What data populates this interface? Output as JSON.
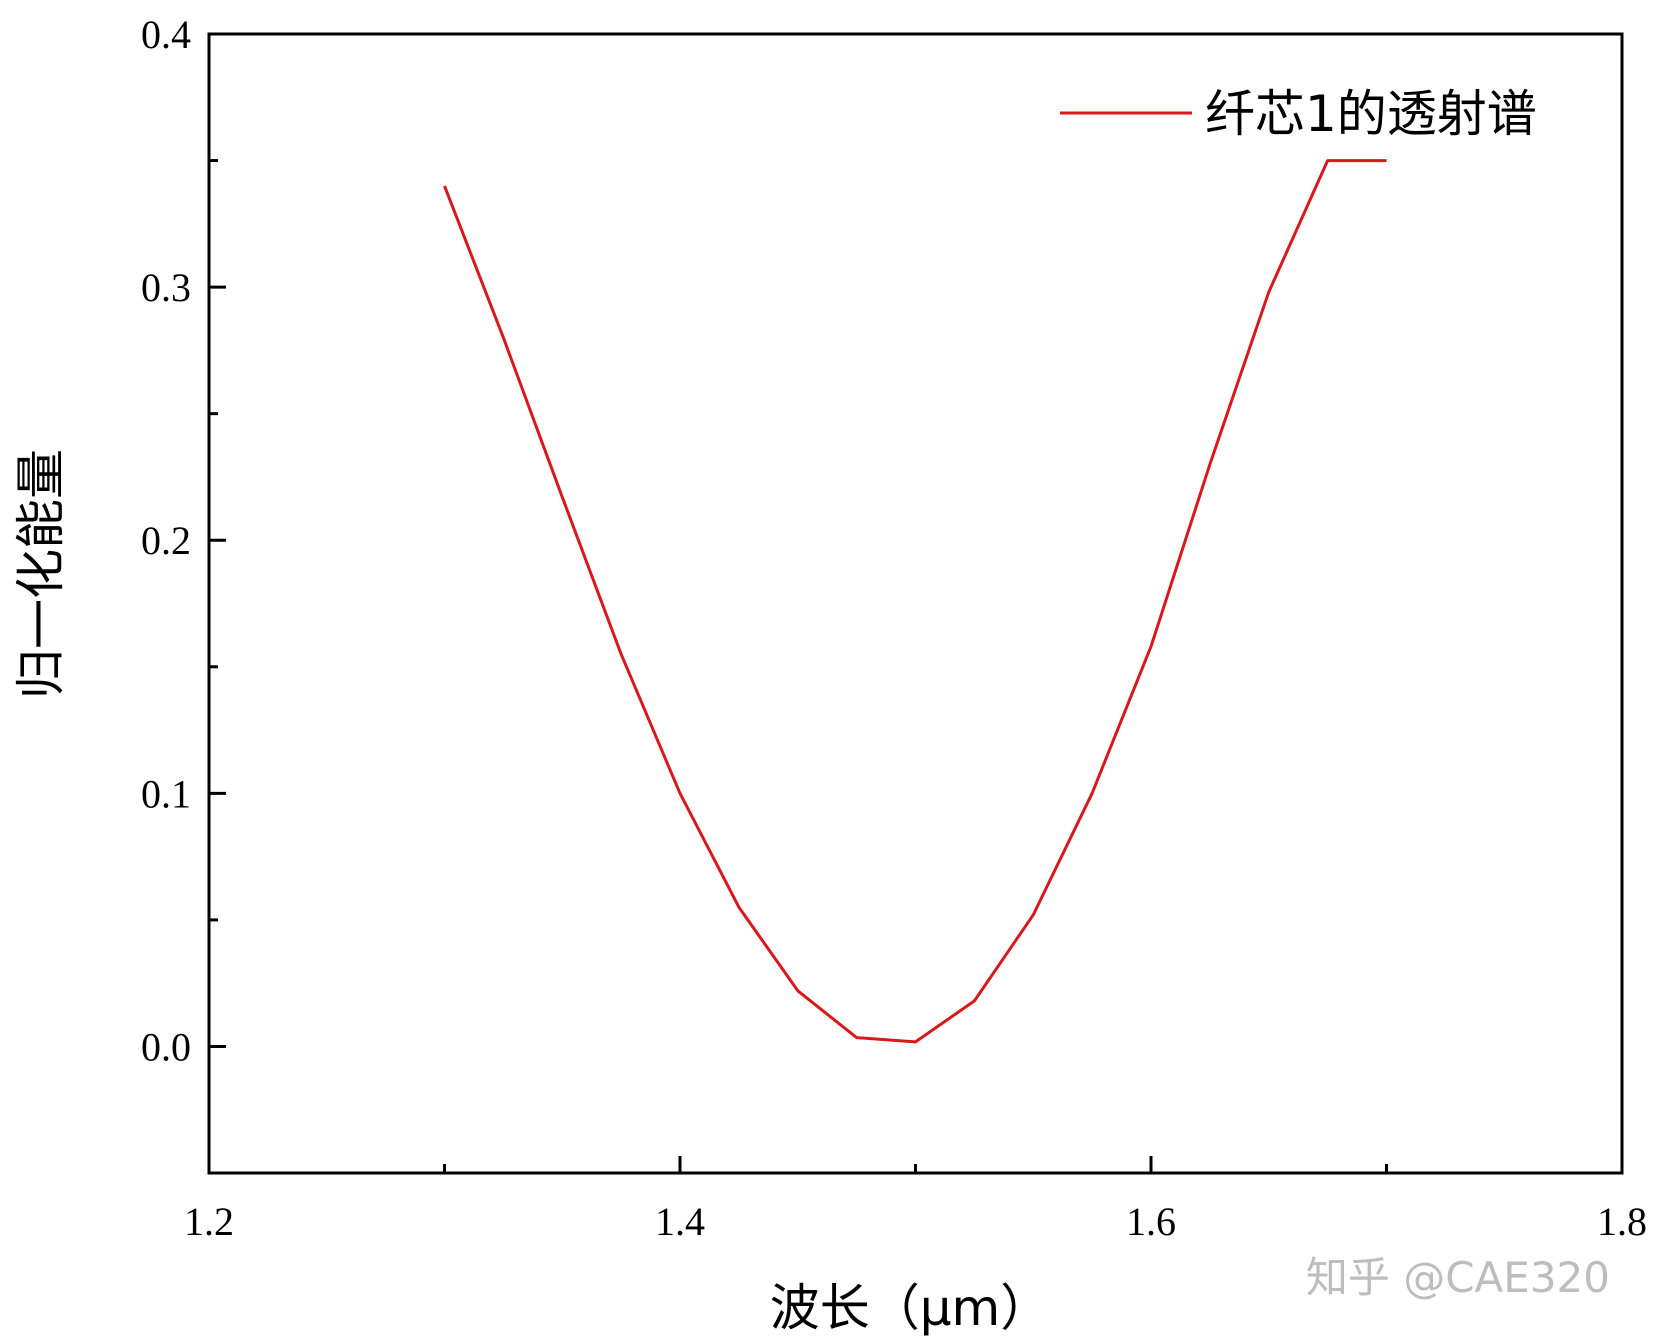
{
  "chart_data": {
    "type": "line",
    "title": "",
    "xlabel": "波长（μm）",
    "ylabel": "归一化能量",
    "xlim": [
      1.2,
      1.8
    ],
    "ylim": [
      -0.05,
      0.4
    ],
    "xticks": [
      "1.2",
      "1.4",
      "1.6",
      "1.8"
    ],
    "yticks": [
      "0.0",
      "0.1",
      "0.2",
      "0.3",
      "0.4"
    ],
    "grid": false,
    "legend_position": "top-right",
    "series": [
      {
        "name": "纤芯1的透射谱",
        "color": "#d7191c",
        "x": [
          1.3,
          1.325,
          1.35,
          1.375,
          1.4,
          1.425,
          1.45,
          1.475,
          1.5,
          1.525,
          1.55,
          1.575,
          1.6,
          1.625,
          1.65,
          1.675,
          1.7
        ],
        "y": [
          0.34,
          0.28,
          0.217,
          0.155,
          0.1,
          0.055,
          0.022,
          0.0035,
          0.0018,
          0.018,
          0.052,
          0.1,
          0.158,
          0.23,
          0.298,
          0.35,
          0.35
        ]
      }
    ]
  },
  "watermark": "知乎 @CAE320"
}
